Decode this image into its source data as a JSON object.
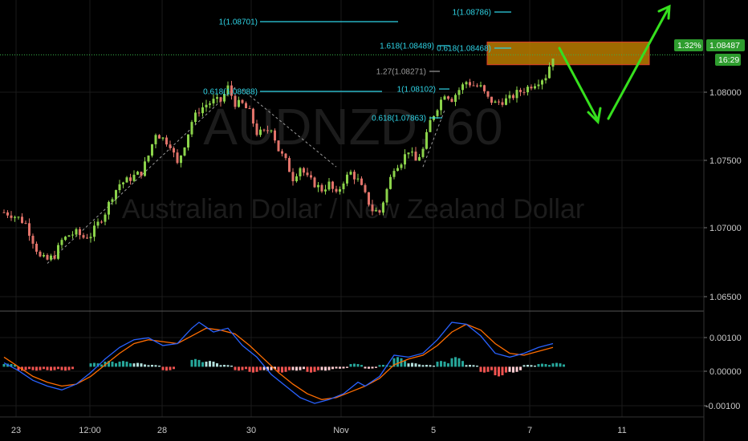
{
  "chart_data": [
    {
      "type": "candlestick",
      "symbol": "AUDNZD, 60",
      "instrument_name": "Australian Dollar / New Zealand Dollar",
      "ylim": [
        1.0623,
        1.0897
      ],
      "y_ticks": [
        "1.08000",
        "1.07500",
        "1.07000",
        "1.06500"
      ],
      "x_ticks": [
        "23",
        "12:00",
        "28",
        "30",
        "Nov",
        "5",
        "7",
        "11"
      ],
      "current_price": "1.08487",
      "change_percent": "1.32%",
      "countdown": "16:29",
      "grid": true,
      "colors": {
        "up": "#8bd34a",
        "down": "#e2736a",
        "fib_cyan": "#2fd4e6",
        "fib_gray": "#9a9a9a",
        "zone_fill": "#cc8800",
        "zone_border": "#e23b2a",
        "arrow": "#36e01e",
        "trend_dash": "#9a9a9a",
        "price_badge": "#2e9d2e"
      },
      "price_path": [
        [
          0,
          1.071
        ],
        [
          2,
          1.0708
        ],
        [
          4,
          1.0705
        ],
        [
          6,
          1.07
        ],
        [
          8,
          1.0685
        ],
        [
          10,
          1.067
        ],
        [
          12,
          1.0668
        ],
        [
          14,
          1.0672
        ],
        [
          16,
          1.0685
        ],
        [
          18,
          1.069
        ],
        [
          20,
          1.0692
        ],
        [
          22,
          1.0688
        ],
        [
          24,
          1.069
        ],
        [
          26,
          1.07
        ],
        [
          28,
          1.071
        ],
        [
          30,
          1.0725
        ],
        [
          32,
          1.0735
        ],
        [
          34,
          1.0738
        ],
        [
          36,
          1.0742
        ],
        [
          38,
          1.0745
        ],
        [
          40,
          1.076
        ],
        [
          42,
          1.078
        ],
        [
          44,
          1.0775
        ],
        [
          46,
          1.077
        ],
        [
          48,
          1.0752
        ],
        [
          50,
          1.077
        ],
        [
          52,
          1.079
        ],
        [
          54,
          1.08
        ],
        [
          56,
          1.0805
        ],
        [
          58,
          1.0808
        ],
        [
          60,
          1.0808
        ],
        [
          62,
          1.082
        ],
        [
          64,
          1.0806
        ],
        [
          66,
          1.0805
        ],
        [
          68,
          1.0798
        ],
        [
          70,
          1.078
        ],
        [
          72,
          1.078
        ],
        [
          74,
          1.0785
        ],
        [
          76,
          1.0765
        ],
        [
          78,
          1.0755
        ],
        [
          80,
          1.074
        ],
        [
          82,
          1.075
        ],
        [
          84,
          1.074
        ],
        [
          86,
          1.0735
        ],
        [
          88,
          1.073
        ],
        [
          90,
          1.0735
        ],
        [
          92,
          1.0725
        ],
        [
          94,
          1.0738
        ],
        [
          96,
          1.0745
        ],
        [
          98,
          1.0738
        ],
        [
          100,
          1.0725
        ],
        [
          102,
          1.0712
        ],
        [
          104,
          1.071
        ],
        [
          106,
          1.073
        ],
        [
          108,
          1.075
        ],
        [
          110,
          1.0755
        ],
        [
          112,
          1.0765
        ],
        [
          114,
          1.0755
        ],
        [
          116,
          1.0765
        ],
        [
          118,
          1.079
        ],
        [
          120,
          1.0803
        ],
        [
          122,
          1.0815
        ],
        [
          124,
          1.081
        ],
        [
          126,
          1.0818
        ],
        [
          128,
          1.0825
        ],
        [
          130,
          1.0822
        ],
        [
          132,
          1.082
        ],
        [
          134,
          1.081
        ],
        [
          136,
          1.0806
        ],
        [
          138,
          1.0808
        ],
        [
          140,
          1.081
        ],
        [
          142,
          1.0815
        ],
        [
          144,
          1.0818
        ],
        [
          146,
          1.0822
        ],
        [
          148,
          1.0826
        ],
        [
          150,
          1.083
        ],
        [
          152,
          1.0848
        ]
      ],
      "fib_levels": [
        {
          "label": "1(1.08701)",
          "value": 1.08701,
          "color": "cyan"
        },
        {
          "label": "1(1.08786)",
          "value": 1.08786,
          "color": "cyan"
        },
        {
          "label": "1.618(1.08489)",
          "value": 1.08489,
          "color": "cyan"
        },
        {
          "label": "0.618(1.08468)",
          "value": 1.08468,
          "color": "cyan"
        },
        {
          "label": "1.27(1.08271)",
          "value": 1.08271,
          "color": "gray"
        },
        {
          "label": "0.618(1.08088)",
          "value": 1.08088,
          "color": "cyan"
        },
        {
          "label": "1(1.08102)",
          "value": 1.08102,
          "color": "cyan"
        },
        {
          "label": "0.618(1.07863)",
          "value": 1.07863,
          "color": "cyan"
        }
      ],
      "resistance_zone": {
        "y_top": 1.086,
        "y_bottom": 1.084
      },
      "projection_arrows": [
        [
          [
            152,
            1.085
          ],
          [
            158,
            1.079
          ],
          [
            166,
            1.087
          ]
        ]
      ],
      "trend_lines": [
        [
          [
            12,
            1.0665
          ],
          [
            64,
            1.082
          ]
        ],
        [
          [
            66,
            1.0818
          ],
          [
            92,
            1.075
          ]
        ],
        [
          [
            116,
            1.075
          ],
          [
            122,
            1.08
          ]
        ]
      ]
    },
    {
      "type": "macd",
      "ylim": [
        -0.0013,
        0.0014
      ],
      "y_ticks": [
        "0.00100",
        "0.00000",
        "-0.00100"
      ],
      "macd_line": [
        [
          0,
          0.0001
        ],
        [
          4,
          -0.0001
        ],
        [
          8,
          -0.00035
        ],
        [
          12,
          -0.0005
        ],
        [
          16,
          -0.0006
        ],
        [
          20,
          -0.00045
        ],
        [
          24,
          -0.00015
        ],
        [
          28,
          0.0002
        ],
        [
          32,
          0.0005
        ],
        [
          36,
          0.0007
        ],
        [
          40,
          0.00075
        ],
        [
          44,
          0.00055
        ],
        [
          48,
          0.0006
        ],
        [
          52,
          0.001
        ],
        [
          54,
          0.00115
        ],
        [
          58,
          0.0009
        ],
        [
          62,
          0.001
        ],
        [
          66,
          0.00055
        ],
        [
          70,
          0.00025
        ],
        [
          74,
          -0.0002
        ],
        [
          78,
          -0.0005
        ],
        [
          82,
          -0.0008
        ],
        [
          86,
          -0.00095
        ],
        [
          90,
          -0.00085
        ],
        [
          94,
          -0.0007
        ],
        [
          98,
          -0.0004
        ],
        [
          100,
          -0.0005
        ],
        [
          104,
          -0.00025
        ],
        [
          108,
          0.0003
        ],
        [
          112,
          0.00025
        ],
        [
          116,
          0.00035
        ],
        [
          120,
          0.0007
        ],
        [
          124,
          0.00115
        ],
        [
          128,
          0.0011
        ],
        [
          132,
          0.0008
        ],
        [
          136,
          0.00035
        ],
        [
          140,
          0.00025
        ],
        [
          144,
          0.00035
        ],
        [
          148,
          0.0005
        ],
        [
          152,
          0.0006
        ]
      ],
      "signal_line": [
        [
          0,
          0.00025
        ],
        [
          4,
          0.0
        ],
        [
          8,
          -0.00025
        ],
        [
          12,
          -0.0004
        ],
        [
          16,
          -0.0005
        ],
        [
          20,
          -0.00045
        ],
        [
          24,
          -0.00025
        ],
        [
          28,
          5e-05
        ],
        [
          32,
          0.00035
        ],
        [
          36,
          0.0006
        ],
        [
          40,
          0.0007
        ],
        [
          44,
          0.00065
        ],
        [
          48,
          0.0006
        ],
        [
          52,
          0.0008
        ],
        [
          56,
          0.001
        ],
        [
          60,
          0.00095
        ],
        [
          64,
          0.00085
        ],
        [
          68,
          0.00055
        ],
        [
          72,
          0.0002
        ],
        [
          76,
          -0.00015
        ],
        [
          80,
          -0.00045
        ],
        [
          84,
          -0.0007
        ],
        [
          88,
          -0.00085
        ],
        [
          92,
          -0.0008
        ],
        [
          96,
          -0.00065
        ],
        [
          100,
          -0.0005
        ],
        [
          104,
          -0.0003
        ],
        [
          108,
          5e-05
        ],
        [
          112,
          0.0002
        ],
        [
          116,
          0.0003
        ],
        [
          120,
          0.00055
        ],
        [
          124,
          0.0009
        ],
        [
          128,
          0.0011
        ],
        [
          132,
          0.00095
        ],
        [
          136,
          0.0006
        ],
        [
          140,
          0.00035
        ],
        [
          144,
          0.0003
        ],
        [
          148,
          0.0004
        ],
        [
          152,
          0.0005
        ]
      ],
      "histogram": [
        [
          0,
          8e-05
        ],
        [
          4,
          -0.0001
        ],
        [
          8,
          -0.0001
        ],
        [
          12,
          -0.0001
        ],
        [
          16,
          -0.0001
        ],
        [
          20,
          0.0
        ],
        [
          24,
          0.0001
        ],
        [
          28,
          0.00015
        ],
        [
          32,
          0.00015
        ],
        [
          36,
          0.0001
        ],
        [
          40,
          5e-05
        ],
        [
          44,
          -0.0001
        ],
        [
          48,
          0.0
        ],
        [
          52,
          0.0002
        ],
        [
          56,
          0.00015
        ],
        [
          60,
          5e-05
        ],
        [
          64,
          -0.0001
        ],
        [
          68,
          -0.00015
        ],
        [
          72,
          -0.0001
        ],
        [
          76,
          -0.00015
        ],
        [
          80,
          -0.0001
        ],
        [
          84,
          -0.00015
        ],
        [
          88,
          -0.0001
        ],
        [
          92,
          -5e-05
        ],
        [
          96,
          8e-05
        ],
        [
          100,
          -5e-05
        ],
        [
          104,
          5e-05
        ],
        [
          108,
          0.00025
        ],
        [
          112,
          0.0001
        ],
        [
          116,
          5e-05
        ],
        [
          120,
          0.00015
        ],
        [
          124,
          0.00025
        ],
        [
          128,
          5e-05
        ],
        [
          132,
          -0.00015
        ],
        [
          136,
          -0.00025
        ],
        [
          140,
          -0.00015
        ],
        [
          144,
          5e-05
        ],
        [
          148,
          8e-05
        ],
        [
          152,
          0.0001
        ]
      ],
      "colors": {
        "macd": "#2962ff",
        "signal": "#ff6d00",
        "hist_pos": "#26a69a",
        "hist_pos_light": "#b2dfdb",
        "hist_neg": "#ef5350",
        "hist_neg_light": "#ffcdd2"
      }
    }
  ]
}
